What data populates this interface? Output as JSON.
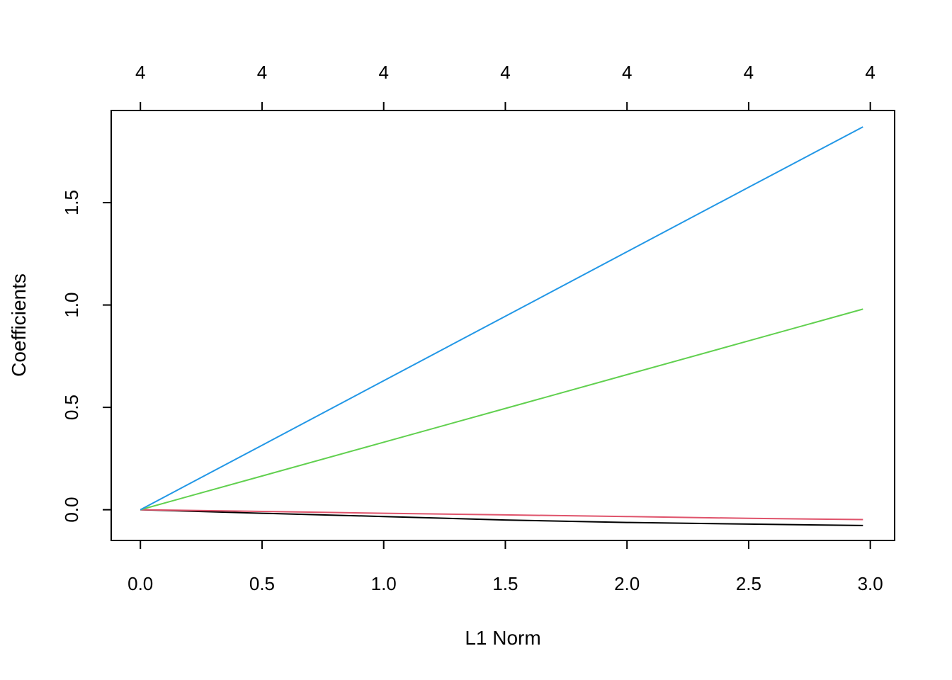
{
  "chart_data": {
    "type": "line",
    "title": "",
    "xlabel": "L1 Norm",
    "ylabel": "Coefficients",
    "xlim": [
      -0.12,
      3.1
    ],
    "ylim": [
      -0.15,
      1.95
    ],
    "x_ticks": [
      "0.0",
      "0.5",
      "1.0",
      "1.5",
      "2.0",
      "2.5",
      "3.0"
    ],
    "x_tick_values": [
      0.0,
      0.5,
      1.0,
      1.5,
      2.0,
      2.5,
      3.0
    ],
    "y_ticks": [
      "0.0",
      "0.5",
      "1.0",
      "1.5"
    ],
    "y_tick_values": [
      0.0,
      0.5,
      1.0,
      1.5
    ],
    "top_ticks": [
      "4",
      "4",
      "4",
      "4",
      "4",
      "4",
      "4"
    ],
    "top_tick_values": [
      0.0,
      0.5,
      1.0,
      1.5,
      2.0,
      2.5,
      3.0
    ],
    "grid": false,
    "legend": "none",
    "x": [
      0.0,
      0.5,
      1.0,
      1.5,
      2.0,
      2.5,
      2.97
    ],
    "series": [
      {
        "color": "#000000",
        "values": [
          0.0,
          -0.017,
          -0.033,
          -0.05,
          -0.062,
          -0.07,
          -0.077
        ]
      },
      {
        "color": "#DF536B",
        "values": [
          0.0,
          -0.008,
          -0.017,
          -0.025,
          -0.033,
          -0.042,
          -0.048
        ]
      },
      {
        "color": "#61D04F",
        "values": [
          0.0,
          0.165,
          0.33,
          0.495,
          0.66,
          0.825,
          0.98
        ]
      },
      {
        "color": "#2297E6",
        "values": [
          0.0,
          0.315,
          0.63,
          0.945,
          1.26,
          1.575,
          1.87
        ]
      }
    ]
  }
}
